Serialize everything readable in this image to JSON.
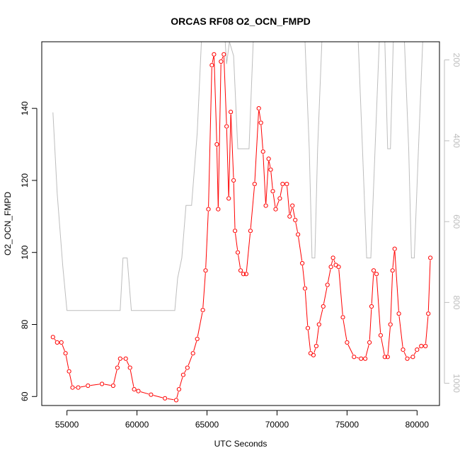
{
  "chart_data": {
    "type": "line",
    "title": "ORCAS RF08 O2_OCN_FMPD",
    "xlabel": "UTC Seconds",
    "ylabel": "O2_OCN_FMPD",
    "xlim": [
      53200,
      81600
    ],
    "ylim": [
      57.5,
      158.5
    ],
    "y2lim": [
      1055,
      155
    ],
    "y2_reversed": true,
    "x_ticks": [
      55000,
      60000,
      65000,
      70000,
      75000,
      80000
    ],
    "y_ticks": [
      60,
      80,
      100,
      120,
      140
    ],
    "y2_ticks": [
      200,
      400,
      600,
      800,
      1000
    ],
    "grid": false,
    "series": [
      {
        "role": "primary",
        "marker": "open-circle",
        "style": "line+points",
        "color": "#ff0000",
        "x": [
          54000,
          54300,
          54600,
          54900,
          55150,
          55400,
          55800,
          56500,
          57500,
          58300,
          58600,
          58800,
          59200,
          59500,
          59800,
          60100,
          61000,
          62000,
          62800,
          63000,
          63300,
          63600,
          64000,
          64300,
          64700,
          64900,
          65100,
          65350,
          65500,
          65700,
          65800,
          66000,
          66200,
          66400,
          66550,
          66700,
          66900,
          67000,
          67200,
          67400,
          67600,
          67800,
          68100,
          68400,
          68700,
          68850,
          69000,
          69200,
          69400,
          69550,
          69700,
          69900,
          70200,
          70400,
          70700,
          70900,
          71100,
          71300,
          71500,
          71800,
          72000,
          72200,
          72400,
          72600,
          72800,
          73000,
          73300,
          73600,
          73850,
          74000,
          74200,
          74400,
          74700,
          75000,
          75500,
          76000,
          76300,
          76600,
          76750,
          76900,
          77100,
          77400,
          77700,
          77900,
          78100,
          78250,
          78400,
          78700,
          79000,
          79300,
          79700,
          80000,
          80300,
          80600,
          80800,
          80950
        ],
        "values": [
          76.5,
          75,
          75,
          72,
          67,
          62.5,
          62.5,
          63,
          63.5,
          63,
          68,
          70.5,
          70.5,
          68,
          62,
          61.5,
          60.5,
          59.5,
          59,
          62,
          66,
          68,
          72,
          76,
          84,
          95,
          112,
          152,
          155,
          130,
          112,
          153,
          155,
          135,
          115,
          139,
          120,
          106,
          100,
          95,
          94,
          94,
          106,
          119,
          140,
          136,
          128,
          113,
          126,
          123,
          117,
          112,
          115,
          119,
          119,
          110,
          113,
          109,
          105,
          97,
          90,
          79,
          72,
          71.5,
          74,
          80,
          85,
          91,
          96,
          98.5,
          96.5,
          96,
          82,
          75,
          71,
          70.5,
          70.5,
          75,
          85,
          95,
          94,
          77,
          71,
          71,
          80,
          95,
          101,
          83,
          73,
          70.5,
          71,
          73,
          74,
          74,
          83,
          98.5
        ]
      },
      {
        "role": "secondary",
        "axis": "right",
        "style": "line",
        "color": "#bdbdbd",
        "x": [
          54000,
          54300,
          54700,
          55000,
          55500,
          56500,
          57500,
          58300,
          58800,
          59000,
          59300,
          59600,
          59900,
          60300,
          61000,
          62000,
          62700,
          62900,
          63200,
          63500,
          63900,
          64300,
          64600,
          64800,
          65000,
          65200,
          65400,
          65700,
          66000,
          66300,
          66400,
          66600,
          66900,
          67200,
          67600,
          68000,
          68300,
          68600,
          69000,
          69300,
          69600,
          69900,
          70200,
          70500,
          70800,
          71100,
          71400,
          71700,
          72000,
          72300,
          72500,
          72700,
          72900,
          73200,
          73500,
          73800,
          74200,
          74600,
          75000,
          75300,
          75500,
          75800,
          76100,
          76400,
          76700,
          77000,
          77300,
          77500,
          77700,
          77900,
          78100,
          78300,
          78500,
          78800,
          79100,
          79400,
          79600,
          79800,
          80100,
          80400,
          80700,
          80900
        ],
        "values": [
          330,
          530,
          710,
          820,
          820,
          820,
          820,
          820,
          820,
          690,
          690,
          820,
          820,
          820,
          820,
          820,
          820,
          740,
          690,
          560,
          560,
          380,
          155,
          155,
          155,
          155,
          155,
          155,
          155,
          155,
          210,
          155,
          190,
          420,
          420,
          420,
          155,
          155,
          155,
          155,
          155,
          155,
          155,
          155,
          155,
          155,
          155,
          155,
          155,
          420,
          690,
          690,
          420,
          155,
          155,
          155,
          155,
          155,
          155,
          155,
          155,
          155,
          420,
          690,
          690,
          420,
          155,
          155,
          155,
          420,
          420,
          155,
          155,
          155,
          155,
          420,
          690,
          690,
          420,
          155,
          155,
          155
        ]
      }
    ]
  }
}
